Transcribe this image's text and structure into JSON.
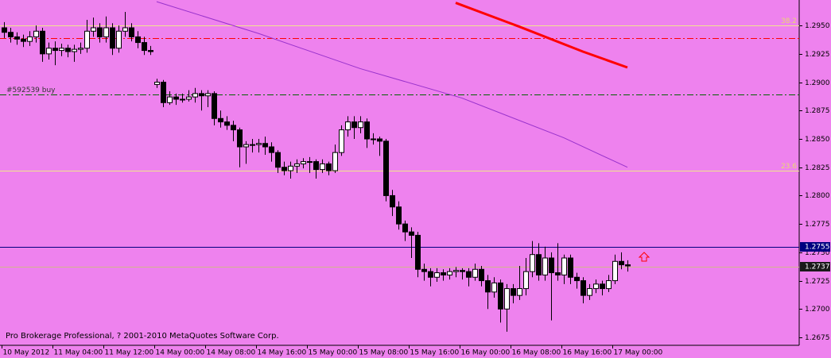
{
  "chart_data": {
    "type": "candlestick",
    "footer": "Pro Brokerage Professional, ? 2001-2010 MetaQuotes Software Corp.",
    "background": "#ee82ee",
    "ylim": [
      1.2668,
      1.29725
    ],
    "yticks": [
      {
        "value": 1.295,
        "label": "1.2950"
      },
      1.2925,
      {
        "value": 1.29,
        "label": "1.2900"
      },
      1.2875,
      {
        "value": 1.285,
        "label": "1.2850"
      },
      1.2825,
      {
        "value": 1.28,
        "label": "1.2800"
      },
      1.2775,
      {
        "value": 1.275,
        "label": "1.2750"
      },
      1.2725,
      {
        "value": 1.27,
        "label": "1.2700"
      },
      1.2675
    ],
    "xticks": [
      {
        "value": 0,
        "label": "10 May 2012"
      },
      {
        "value": 8,
        "label": "11 May 04:00"
      },
      {
        "value": 16,
        "label": "11 May 12:00"
      },
      {
        "value": 24,
        "label": "14 May 00:00"
      },
      {
        "value": 32,
        "label": "14 May 08:00"
      },
      {
        "value": 40,
        "label": "14 May 16:00"
      },
      {
        "value": 48,
        "label": "15 May 00:00"
      },
      {
        "value": 56,
        "label": "15 May 08:00"
      },
      {
        "value": 64,
        "label": "15 May 16:00"
      },
      {
        "value": 72,
        "label": "16 May 00:00"
      },
      {
        "value": 80,
        "label": "16 May 08:00"
      },
      {
        "value": 88,
        "label": "16 May 16:00"
      },
      {
        "value": 96,
        "label": "17 May 00:00"
      }
    ],
    "candles": [
      [
        1.2948,
        1.2953,
        1.2939,
        1.2944
      ],
      [
        1.2944,
        1.2948,
        1.2935,
        1.294
      ],
      [
        1.294,
        1.2944,
        1.2933,
        1.2938
      ],
      [
        1.2938,
        1.2942,
        1.2931,
        1.2936
      ],
      [
        1.2936,
        1.2945,
        1.2932,
        1.294
      ],
      [
        1.294,
        1.295,
        1.2935,
        1.2945
      ],
      [
        1.2945,
        1.2948,
        1.2918,
        1.2925
      ],
      [
        1.2925,
        1.2935,
        1.292,
        1.293
      ],
      [
        1.293,
        1.2936,
        1.2915,
        1.2928
      ],
      [
        1.2928,
        1.2934,
        1.2923,
        1.293
      ],
      [
        1.293,
        1.2933,
        1.2922,
        1.2927
      ],
      [
        1.2927,
        1.2933,
        1.2918,
        1.2929
      ],
      [
        1.2929,
        1.2935,
        1.2925,
        1.293
      ],
      [
        1.293,
        1.2955,
        1.2926,
        1.2945
      ],
      [
        1.2945,
        1.2957,
        1.294,
        1.2948
      ],
      [
        1.2948,
        1.2952,
        1.2935,
        1.294
      ],
      [
        1.294,
        1.2958,
        1.2935,
        1.2948
      ],
      [
        1.2948,
        1.2952,
        1.2924,
        1.293
      ],
      [
        1.293,
        1.295,
        1.2926,
        1.2945
      ],
      [
        1.2945,
        1.2962,
        1.294,
        1.2948
      ],
      [
        1.2948,
        1.2952,
        1.2936,
        1.294
      ],
      [
        1.294,
        1.2945,
        1.293,
        1.2935
      ],
      [
        1.2935,
        1.294,
        1.2924,
        1.2928
      ],
      [
        1.2928,
        1.2932,
        1.2924,
        1.2927
      ],
      [
        1.2898,
        1.2903,
        1.2895,
        1.29
      ],
      [
        1.29,
        1.2902,
        1.2878,
        1.2882
      ],
      [
        1.2882,
        1.2892,
        1.288,
        1.2887
      ],
      [
        1.2887,
        1.289,
        1.288,
        1.2885
      ],
      [
        1.2885,
        1.289,
        1.2882,
        1.2885
      ],
      [
        1.2885,
        1.2893,
        1.2883,
        1.2887
      ],
      [
        1.2887,
        1.2895,
        1.2882,
        1.289
      ],
      [
        1.289,
        1.2893,
        1.2875,
        1.2888
      ],
      [
        1.2888,
        1.2893,
        1.2878,
        1.289
      ],
      [
        1.289,
        1.2892,
        1.2862,
        1.2868
      ],
      [
        1.2868,
        1.2875,
        1.286,
        1.2865
      ],
      [
        1.2865,
        1.287,
        1.2858,
        1.2862
      ],
      [
        1.2862,
        1.2866,
        1.2848,
        1.2858
      ],
      [
        1.2858,
        1.286,
        1.2825,
        1.2843
      ],
      [
        1.2843,
        1.2848,
        1.2828,
        1.2845
      ],
      [
        1.2845,
        1.285,
        1.2838,
        1.2845
      ],
      [
        1.2845,
        1.285,
        1.2838,
        1.2846
      ],
      [
        1.2846,
        1.2852,
        1.2836,
        1.2843
      ],
      [
        1.2843,
        1.2847,
        1.283,
        1.2838
      ],
      [
        1.2838,
        1.284,
        1.282,
        1.2825
      ],
      [
        1.2825,
        1.283,
        1.2818,
        1.2822
      ],
      [
        1.2822,
        1.283,
        1.2815,
        1.2826
      ],
      [
        1.2826,
        1.2832,
        1.282,
        1.2828
      ],
      [
        1.2828,
        1.2833,
        1.2824,
        1.283
      ],
      [
        1.283,
        1.2834,
        1.282,
        1.283
      ],
      [
        1.283,
        1.2832,
        1.2815,
        1.2823
      ],
      [
        1.2823,
        1.2832,
        1.282,
        1.2828
      ],
      [
        1.2828,
        1.283,
        1.2818,
        1.2822
      ],
      [
        1.2822,
        1.2845,
        1.282,
        1.2838
      ],
      [
        1.2838,
        1.2862,
        1.2835,
        1.2858
      ],
      [
        1.2858,
        1.287,
        1.2852,
        1.2865
      ],
      [
        1.2865,
        1.287,
        1.285,
        1.286
      ],
      [
        1.286,
        1.287,
        1.2855,
        1.2865
      ],
      [
        1.2865,
        1.2868,
        1.2842,
        1.285
      ],
      [
        1.285,
        1.2855,
        1.2845,
        1.285
      ],
      [
        1.285,
        1.2852,
        1.2835,
        1.2848
      ],
      [
        1.2848,
        1.285,
        1.2795,
        1.28
      ],
      [
        1.28,
        1.2805,
        1.2782,
        1.279
      ],
      [
        1.279,
        1.2795,
        1.277,
        1.2775
      ],
      [
        1.2775,
        1.2778,
        1.276,
        1.2768
      ],
      [
        1.2768,
        1.2772,
        1.2745,
        1.2765
      ],
      [
        1.2765,
        1.2768,
        1.2728,
        1.2735
      ],
      [
        1.2735,
        1.274,
        1.2725,
        1.2733
      ],
      [
        1.2733,
        1.2736,
        1.272,
        1.2728
      ],
      [
        1.2728,
        1.2736,
        1.2724,
        1.2732
      ],
      [
        1.2732,
        1.2735,
        1.2725,
        1.273
      ],
      [
        1.273,
        1.2736,
        1.2726,
        1.2733
      ],
      [
        1.2733,
        1.2737,
        1.2728,
        1.2734
      ],
      [
        1.2734,
        1.2736,
        1.2726,
        1.2733
      ],
      [
        1.2733,
        1.2736,
        1.272,
        1.2728
      ],
      [
        1.2728,
        1.274,
        1.2725,
        1.2735
      ],
      [
        1.2735,
        1.2738,
        1.272,
        1.2725
      ],
      [
        1.2725,
        1.273,
        1.27,
        1.2715
      ],
      [
        1.2715,
        1.2728,
        1.271,
        1.2723
      ],
      [
        1.2723,
        1.2726,
        1.2688,
        1.27
      ],
      [
        1.27,
        1.2722,
        1.268,
        1.2718
      ],
      [
        1.2718,
        1.2722,
        1.2705,
        1.2712
      ],
      [
        1.2712,
        1.2738,
        1.2708,
        1.2718
      ],
      [
        1.2718,
        1.2745,
        1.2712,
        1.2733
      ],
      [
        1.2733,
        1.276,
        1.2728,
        1.2748
      ],
      [
        1.2748,
        1.2758,
        1.2725,
        1.273
      ],
      [
        1.273,
        1.2755,
        1.2725,
        1.2745
      ],
      [
        1.2745,
        1.275,
        1.269,
        1.2732
      ],
      [
        1.2732,
        1.2758,
        1.2725,
        1.273
      ],
      [
        1.273,
        1.2748,
        1.2722,
        1.2745
      ],
      [
        1.2745,
        1.2748,
        1.2722,
        1.2728
      ],
      [
        1.2728,
        1.2732,
        1.2718,
        1.2725
      ],
      [
        1.2725,
        1.2728,
        1.2705,
        1.2712
      ],
      [
        1.2712,
        1.2722,
        1.2708,
        1.2718
      ],
      [
        1.2718,
        1.2726,
        1.2714,
        1.2722
      ],
      [
        1.2722,
        1.2725,
        1.2712,
        1.2718
      ],
      [
        1.2718,
        1.273,
        1.2715,
        1.2725
      ],
      [
        1.2725,
        1.2748,
        1.2722,
        1.2742
      ],
      [
        1.2742,
        1.275,
        1.2735,
        1.2739
      ],
      [
        1.2739,
        1.2743,
        1.2733,
        1.2738
      ]
    ],
    "series": [
      {
        "color": "#9932cc",
        "x": [
          24,
          40,
          56,
          72,
          88,
          98
        ],
        "values": [
          1.2971,
          1.2943,
          1.2912,
          1.2886,
          1.2851,
          1.2825
        ]
      },
      {
        "color": "#ff0000",
        "x": [
          71,
          81,
          91,
          98
        ],
        "values": [
          1.297,
          1.2949,
          1.2927,
          1.2913
        ]
      }
    ],
    "hlines": [
      {
        "value": 1.295,
        "color": "#f0e68c",
        "label": "38.2"
      },
      {
        "value": 1.2939,
        "color": "#ff0000",
        "dash": "8 3 2 3"
      },
      {
        "value": 1.2889,
        "color": "#006400",
        "dash": "8 3 2 3",
        "label": "#592539 buy"
      },
      {
        "value": 1.2822,
        "color": "#f0e68c",
        "label": "23.6"
      },
      {
        "value": 1.2755,
        "color": "#000080"
      },
      {
        "value": 1.2737,
        "color": "#d2b48c"
      }
    ],
    "price_labels": [
      {
        "value": 1.2755,
        "color": "#000080"
      },
      {
        "value": 1.2737,
        "color": "#1a1a1a"
      }
    ]
  }
}
